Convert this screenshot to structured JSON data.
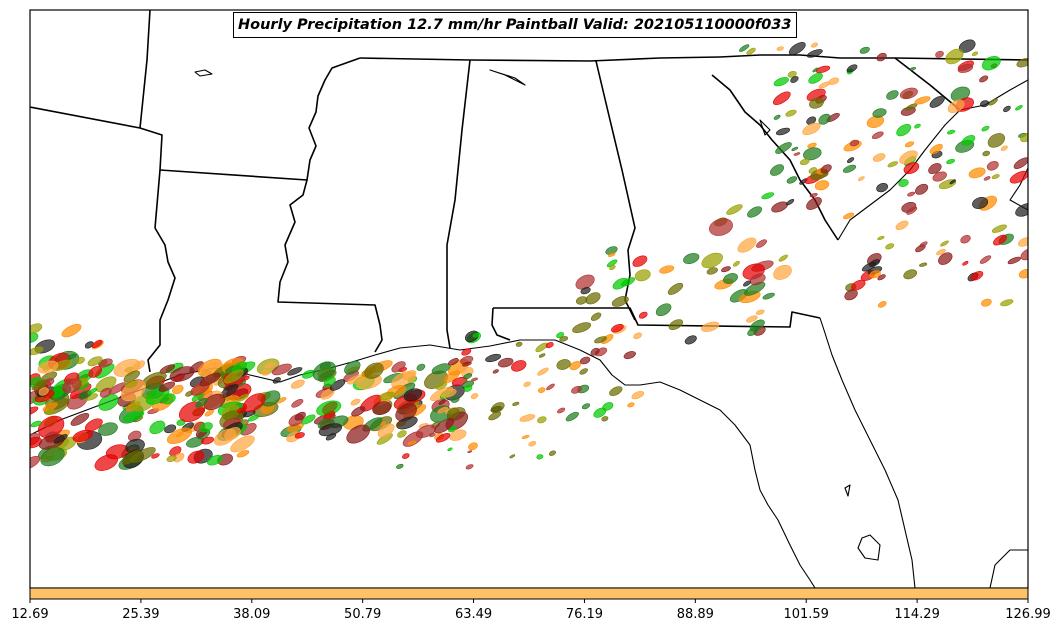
{
  "title": "Hourly Precipitation 12.7 mm/hr Paintball Valid: 202105110000f033",
  "colorbar": {
    "color": "#FFC266",
    "tick_labels": [
      "12.69",
      "25.39",
      "38.09",
      "50.79",
      "63.49",
      "76.19",
      "88.89",
      "101.59",
      "114.29",
      "126.99"
    ]
  },
  "map": {
    "region": "Southeastern United States",
    "member_colors": [
      "#E60000",
      "#00C800",
      "#FF8C00",
      "#FFA640",
      "#8B1A1A",
      "#6B6B00",
      "#9AA000",
      "#1E7D1E",
      "#202020",
      "#B03030"
    ]
  }
}
